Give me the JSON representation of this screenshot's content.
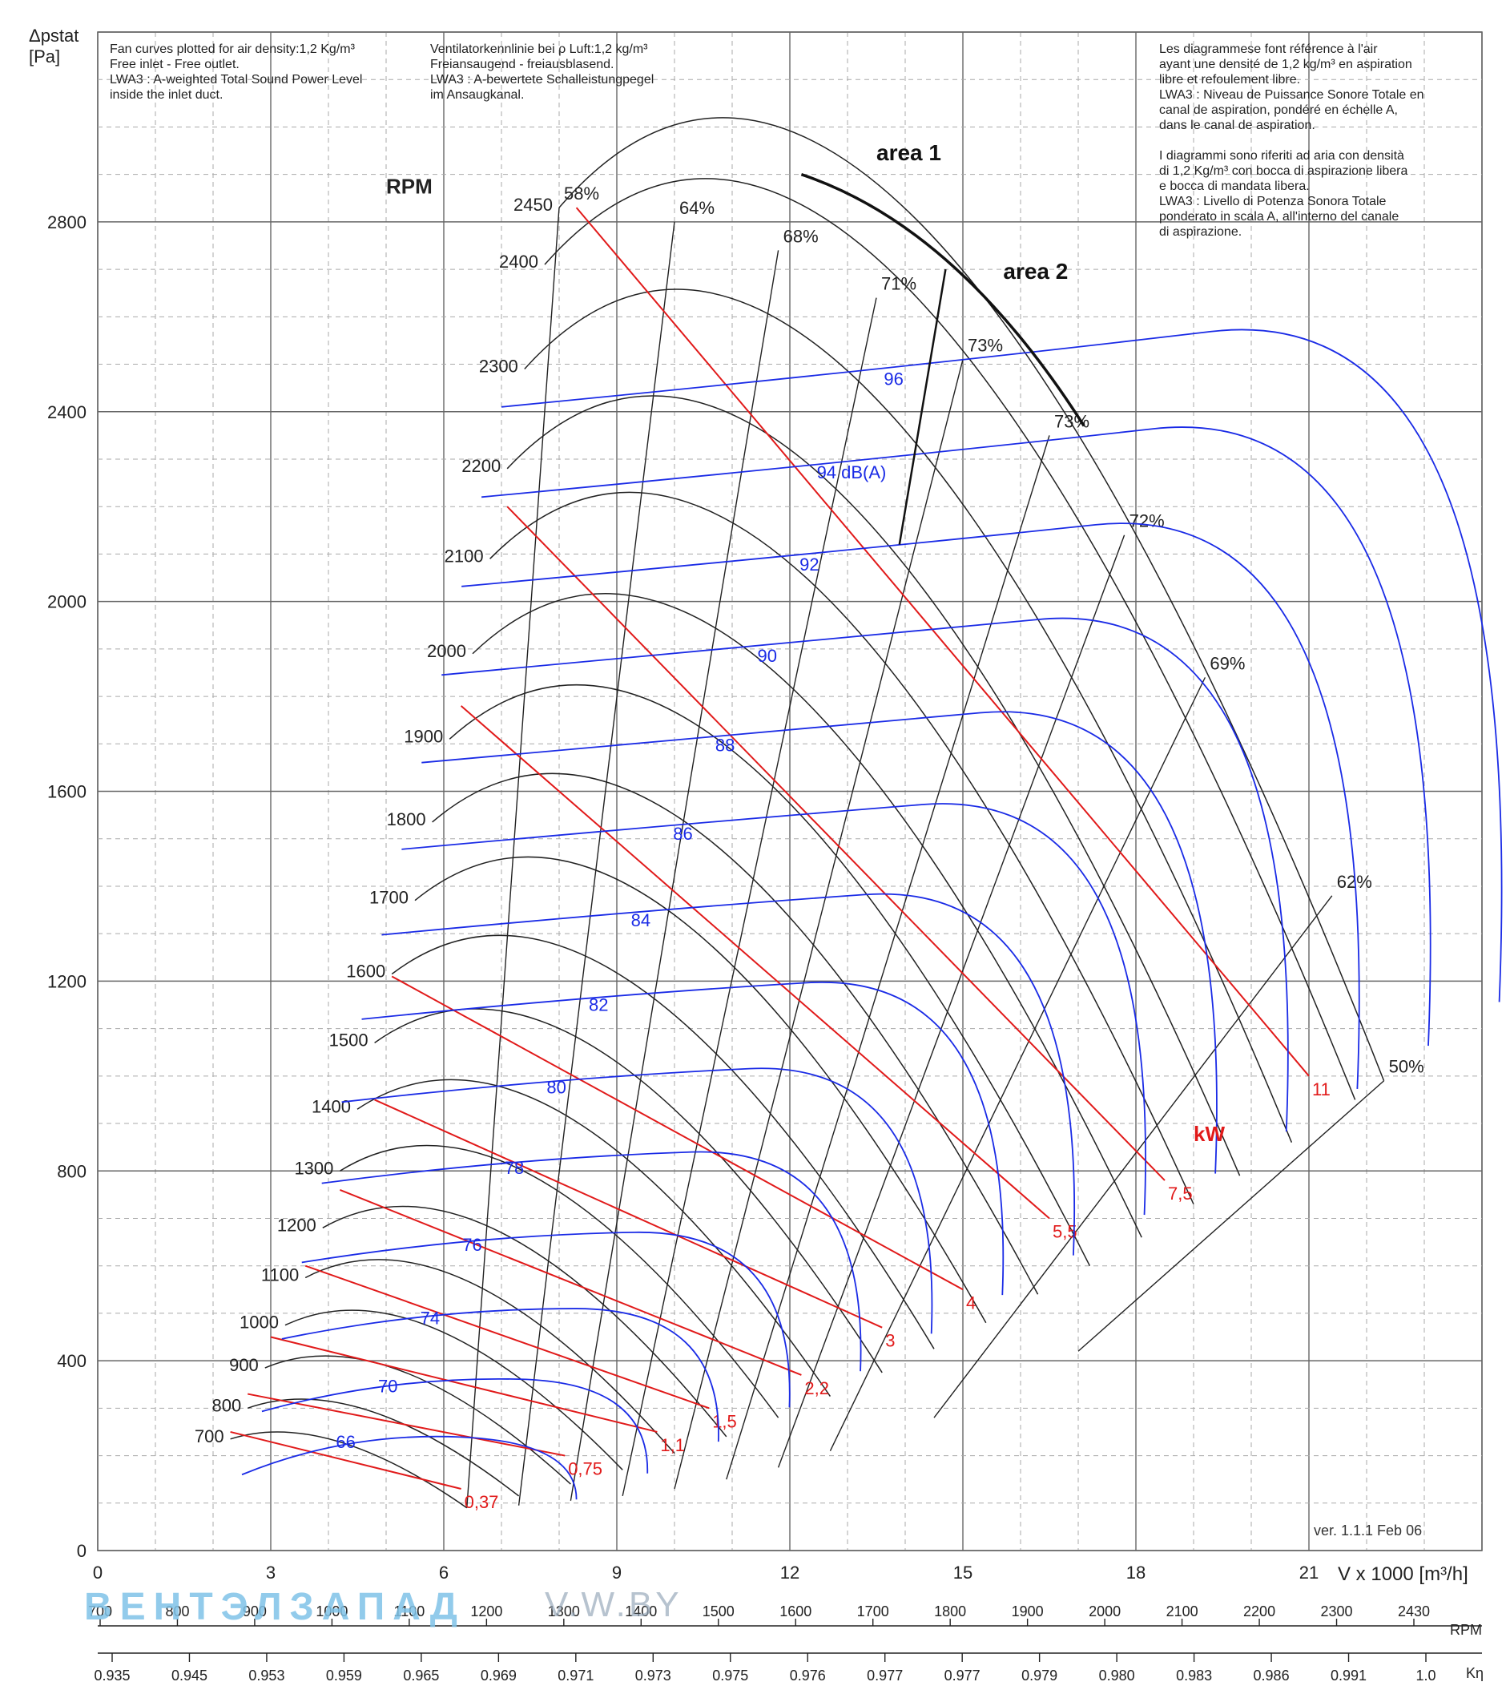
{
  "notes": {
    "en": "Fan curves plotted for air density:1,2 Kg/m³\nFree inlet - Free outlet.\nLWA3 : A-weighted Total Sound Power Level\ninside the inlet duct.",
    "de": "Ventilatorkennlinie bei ρ Luft:1,2 kg/m³\nFreiansaugend - freiausblasend.\nLWA3 : A-bewertete Schalleistungpegel\nim Ansaugkanal.",
    "fr_it": "Les diagrammese font référence à l'air\nayant une densité de 1,2 kg/m³ en aspiration\nlibre et refoulement libre.\nLWA3 : Niveau de Puissance Sonore Totale en\ncanal de aspiration, pondéré en échelle A,\ndans le canal de aspiration.\n\nI diagrammi sono riferiti ad aria con densità\ndi 1,2 Kg/m³ con bocca di aspirazione libera\ne bocca di mandata libera.\nLWA3 : Livello di Potenza Sonora Totale\nponderato in scala A, all'interno del canale\ndi aspirazione."
  },
  "version": "ver. 1.1.1 Feb 06",
  "watermark": {
    "brand": "ВЕНТЭЛЗАПАД",
    "site": "V.W.BY"
  },
  "chart_data": {
    "type": "line",
    "title": "",
    "ylabel": "Δpstat\n[Pa]",
    "xlabel": "V x 1000 [m³/h]",
    "x_ticks": [
      "0",
      "3",
      "6",
      "9",
      "12",
      "15",
      "18",
      "21"
    ],
    "y_ticks": [
      "0",
      "400",
      "800",
      "1200",
      "1600",
      "2000",
      "2400",
      "2800"
    ],
    "xlim": [
      0,
      24
    ],
    "ylim": [
      0,
      3200
    ],
    "grid": true,
    "rpm_label": "RPM",
    "rpm_curves": [
      {
        "rpm": "2450",
        "x0": 8.0,
        "y0": 2830,
        "xe": 22.3,
        "ye": 990
      },
      {
        "rpm": "2400",
        "x0": 7.75,
        "y0": 2710,
        "xe": 21.8,
        "ye": 950
      },
      {
        "rpm": "2300",
        "x0": 7.4,
        "y0": 2490,
        "xe": 20.7,
        "ye": 860
      },
      {
        "rpm": "2200",
        "x0": 7.1,
        "y0": 2280,
        "xe": 19.8,
        "ye": 790
      },
      {
        "rpm": "2100",
        "x0": 6.8,
        "y0": 2090,
        "xe": 19.0,
        "ye": 730
      },
      {
        "rpm": "2000",
        "x0": 6.5,
        "y0": 1890,
        "xe": 18.1,
        "ye": 660
      },
      {
        "rpm": "1900",
        "x0": 6.1,
        "y0": 1710,
        "xe": 17.2,
        "ye": 600
      },
      {
        "rpm": "1800",
        "x0": 5.8,
        "y0": 1535,
        "xe": 16.3,
        "ye": 540
      },
      {
        "rpm": "1700",
        "x0": 5.5,
        "y0": 1370,
        "xe": 15.4,
        "ye": 480
      },
      {
        "rpm": "1600",
        "x0": 5.1,
        "y0": 1215,
        "xe": 14.5,
        "ye": 425
      },
      {
        "rpm": "1500",
        "x0": 4.8,
        "y0": 1070,
        "xe": 13.6,
        "ye": 375
      },
      {
        "rpm": "1400",
        "x0": 4.5,
        "y0": 930,
        "xe": 12.7,
        "ye": 325
      },
      {
        "rpm": "1300",
        "x0": 4.2,
        "y0": 800,
        "xe": 11.8,
        "ye": 280
      },
      {
        "rpm": "1200",
        "x0": 3.9,
        "y0": 680,
        "xe": 10.9,
        "ye": 240
      },
      {
        "rpm": "1100",
        "x0": 3.6,
        "y0": 575,
        "xe": 10.0,
        "ye": 205
      },
      {
        "rpm": "1000",
        "x0": 3.25,
        "y0": 475,
        "xe": 9.1,
        "ye": 170
      },
      {
        "rpm": "900",
        "x0": 2.9,
        "y0": 385,
        "xe": 8.2,
        "ye": 140
      },
      {
        "rpm": "800",
        "x0": 2.6,
        "y0": 300,
        "xe": 7.3,
        "ye": 115
      },
      {
        "rpm": "700",
        "x0": 2.3,
        "y0": 235,
        "xe": 6.4,
        "ye": 90
      }
    ],
    "efficiency_lines": [
      {
        "label": "58%",
        "x0": 6.4,
        "y0": 90,
        "x1": 8.0,
        "y1": 2830
      },
      {
        "label": "64%",
        "x0": 7.3,
        "y0": 95,
        "x1": 10.0,
        "y1": 2800
      },
      {
        "label": "68%",
        "x0": 8.2,
        "y0": 105,
        "x1": 11.8,
        "y1": 2740
      },
      {
        "label": "71%",
        "x0": 9.1,
        "y0": 115,
        "x1": 13.5,
        "y1": 2640
      },
      {
        "label": "73%",
        "x0": 10.0,
        "y0": 130,
        "x1": 15.0,
        "y1": 2510
      },
      {
        "label": "73%",
        "x0": 10.9,
        "y0": 150,
        "x1": 16.5,
        "y1": 2350
      },
      {
        "label": "72%",
        "x0": 11.8,
        "y0": 175,
        "x1": 17.8,
        "y1": 2140
      },
      {
        "label": "69%",
        "x0": 12.7,
        "y0": 210,
        "x1": 19.2,
        "y1": 1840
      },
      {
        "label": "62%",
        "x0": 14.5,
        "y0": 280,
        "x1": 21.4,
        "y1": 1380
      },
      {
        "label": "50%",
        "x0": 17.0,
        "y0": 420,
        "x1": 22.3,
        "y1": 990
      }
    ],
    "power_lines": [
      {
        "label": "0,37",
        "x0": 2.3,
        "y0": 250,
        "x1": 6.3,
        "y1": 130
      },
      {
        "label": "0,75",
        "x0": 2.6,
        "y0": 330,
        "x1": 8.1,
        "y1": 200
      },
      {
        "label": "1,1",
        "x0": 3.0,
        "y0": 450,
        "x1": 9.7,
        "y1": 250
      },
      {
        "label": "1,5",
        "x0": 3.6,
        "y0": 600,
        "x1": 10.6,
        "y1": 300
      },
      {
        "label": "2,2",
        "x0": 4.2,
        "y0": 760,
        "x1": 12.2,
        "y1": 370
      },
      {
        "label": "3",
        "x0": 4.8,
        "y0": 950,
        "x1": 13.6,
        "y1": 470
      },
      {
        "label": "4",
        "x0": 5.1,
        "y0": 1210,
        "x1": 15.0,
        "y1": 550
      },
      {
        "label": "5,5",
        "x0": 6.3,
        "y0": 1780,
        "x1": 16.5,
        "y1": 700
      },
      {
        "label": "7,5",
        "x0": 7.1,
        "y0": 2200,
        "x1": 18.5,
        "y1": 780
      },
      {
        "label": "11",
        "x0": 8.3,
        "y0": 2830,
        "x1": 21.0,
        "y1": 1000
      }
    ],
    "power_unit": "kW",
    "sound_levels": [
      "66",
      "70",
      "74",
      "76",
      "78",
      "80",
      "82",
      "84",
      "86",
      "88",
      "90",
      "92",
      "94 dB(A)",
      "96"
    ],
    "area_labels": [
      "area 1",
      "area 2"
    ],
    "rpm_scale": [
      "700",
      "800",
      "900",
      "1000",
      "1100",
      "1200",
      "1300",
      "1400",
      "1500",
      "1600",
      "1700",
      "1800",
      "1900",
      "2000",
      "2100",
      "2200",
      "2300",
      "2430"
    ],
    "rpm_scale_label": "RPM",
    "k_eta_scale": [
      "0.935",
      "0.945",
      "0.953",
      "0.959",
      "0.965",
      "0.969",
      "0.971",
      "0.973",
      "0.975",
      "0.976",
      "0.977",
      "0.977",
      "0.979",
      "0.980",
      "0.983",
      "0.986",
      "0.991",
      "1.0"
    ],
    "k_eta_label": "Kη",
    "colors": {
      "rpm": "#222222",
      "efficiency": "#222222",
      "power": "#e11a1a",
      "sound": "#1a2be6",
      "grid_major": "#666666",
      "grid_minor": "#aaaaaa"
    }
  }
}
